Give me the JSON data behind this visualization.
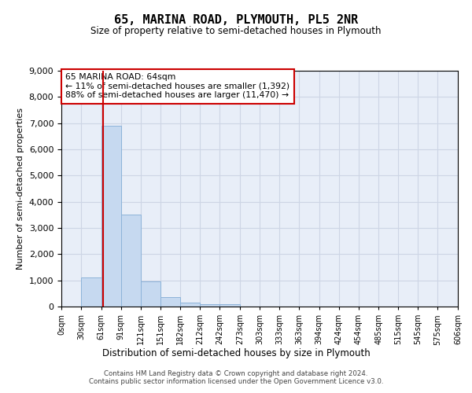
{
  "title": "65, MARINA ROAD, PLYMOUTH, PL5 2NR",
  "subtitle": "Size of property relative to semi-detached houses in Plymouth",
  "xlabel": "Distribution of semi-detached houses by size in Plymouth",
  "ylabel": "Number of semi-detached properties",
  "footer_line1": "Contains HM Land Registry data © Crown copyright and database right 2024.",
  "footer_line2": "Contains public sector information licensed under the Open Government Licence v3.0.",
  "annotation_title": "65 MARINA ROAD: 64sqm",
  "annotation_line1": "← 11% of semi-detached houses are smaller (1,392)",
  "annotation_line2": "88% of semi-detached houses are larger (11,470) →",
  "property_sqm": 64,
  "bins": [
    0,
    30,
    61,
    91,
    121,
    151,
    182,
    212,
    242,
    273,
    303,
    333,
    363,
    394,
    424,
    454,
    485,
    515,
    545,
    575,
    606
  ],
  "bar_heights": [
    0,
    1100,
    6900,
    3500,
    950,
    350,
    150,
    80,
    80,
    0,
    0,
    0,
    0,
    0,
    0,
    0,
    0,
    0,
    0,
    0
  ],
  "bar_color": "#c6d9f0",
  "bar_edge_color": "#8db3d9",
  "grid_color": "#cdd5e5",
  "background_color": "#e8eef8",
  "vline_color": "#cc0000",
  "annotation_box_facecolor": "#ffffff",
  "annotation_box_edgecolor": "#cc0000",
  "ylim": [
    0,
    9000
  ],
  "yticks": [
    0,
    1000,
    2000,
    3000,
    4000,
    5000,
    6000,
    7000,
    8000,
    9000
  ]
}
